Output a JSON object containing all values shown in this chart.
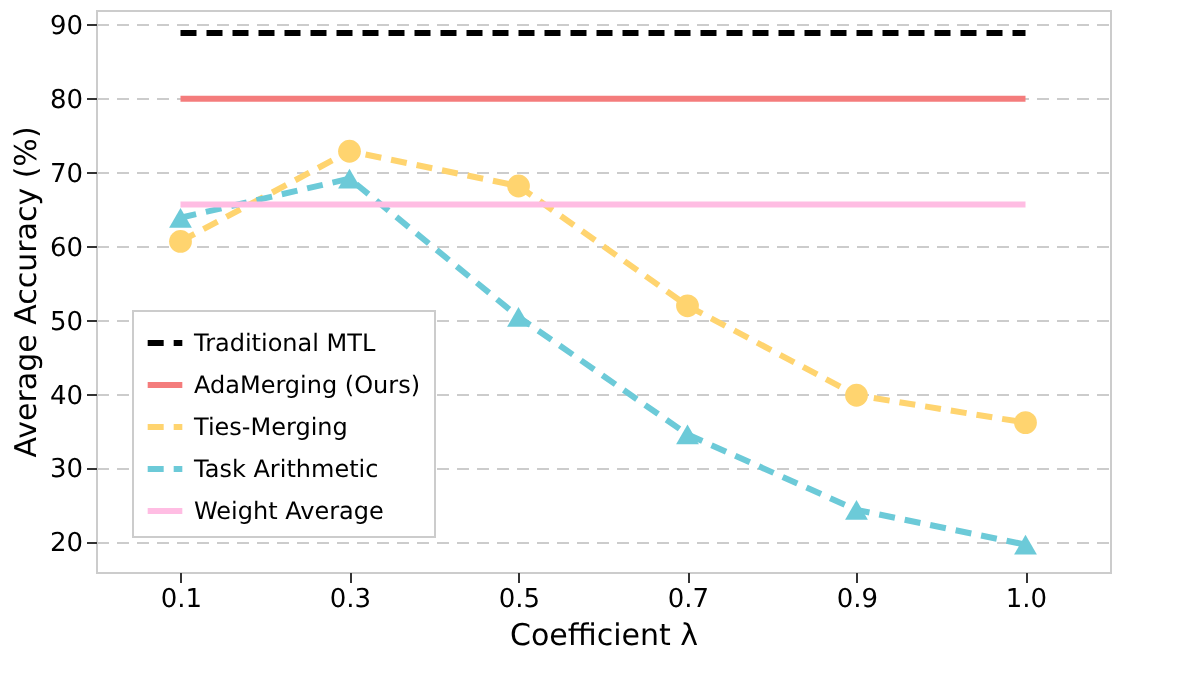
{
  "chart_data": {
    "type": "line",
    "xlabel": "Coefficient λ",
    "ylabel": "Average Accuracy (%)",
    "categories": [
      "0.1",
      "0.3",
      "0.5",
      "0.7",
      "0.9",
      "1.0"
    ],
    "ylim": [
      16,
      92
    ],
    "yticks": [
      20,
      30,
      40,
      50,
      60,
      70,
      80,
      90
    ],
    "grid": "y",
    "legend": "bottom left",
    "series": [
      {
        "name": "Traditional MTL",
        "color": "#000000",
        "line_style": "dashed",
        "marker": "none",
        "values": [
          88.9,
          88.9,
          88.9,
          88.9,
          88.9,
          88.9
        ]
      },
      {
        "name": "AdaMerging (Ours)",
        "color": "#f47c7c",
        "line_style": "solid",
        "marker": "none",
        "values": [
          80.0,
          80.0,
          80.0,
          80.0,
          80.0,
          80.0
        ]
      },
      {
        "name": "Ties-Merging",
        "color": "#ffd46f",
        "line_style": "dashed",
        "marker": "circle",
        "values": [
          60.7,
          72.9,
          68.2,
          52.0,
          39.9,
          36.2
        ]
      },
      {
        "name": "Task Arithmetic",
        "color": "#6ccad8",
        "line_style": "dashed",
        "marker": "triangle",
        "values": [
          63.9,
          69.2,
          50.5,
          34.6,
          24.4,
          19.7
        ]
      },
      {
        "name": "Weight Average",
        "color": "#ffbde3",
        "line_style": "solid",
        "marker": "none",
        "values": [
          65.7,
          65.7,
          65.7,
          65.7,
          65.7,
          65.7
        ]
      }
    ]
  }
}
